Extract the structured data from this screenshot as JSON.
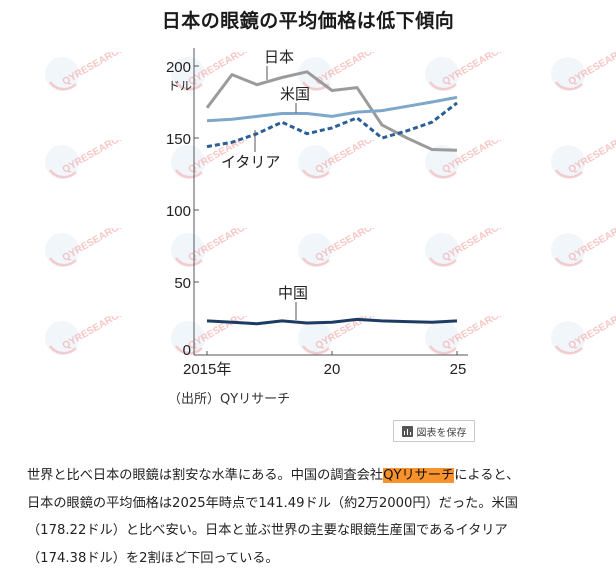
{
  "chart_data": {
    "type": "line",
    "title": "日本の眼鏡の平均価格は低下傾向",
    "xlabel": "",
    "ylabel": "ドル",
    "x": [
      2015,
      2016,
      2017,
      2018,
      2019,
      2020,
      2021,
      2022,
      2023,
      2024,
      2025
    ],
    "x_tick_labels": [
      "2015年",
      "20",
      "25"
    ],
    "x_ticks": [
      2015,
      2020,
      2025
    ],
    "y_ticks": [
      0,
      50,
      100,
      150,
      200
    ],
    "y_tick_labels": [
      "0",
      "50",
      "100",
      "150",
      "200"
    ],
    "ylim": [
      0,
      200
    ],
    "grid": false,
    "legend": "inline labels",
    "series": [
      {
        "name": "日本",
        "color": "#9b9b9b",
        "style": "solid",
        "values": [
          171,
          194,
          187,
          192,
          196,
          183,
          185,
          159,
          150,
          142,
          141.49
        ]
      },
      {
        "name": "米国",
        "color": "#7fa7c9",
        "style": "solid",
        "values": [
          162,
          163,
          165,
          167,
          167,
          165,
          168,
          169,
          172,
          175,
          178.22
        ]
      },
      {
        "name": "イタリア",
        "color": "#2a5f97",
        "style": "dashed",
        "values": [
          144,
          147,
          153,
          161,
          153,
          157,
          164,
          150,
          155,
          161,
          174.38
        ]
      },
      {
        "name": "中国",
        "color": "#1d3c63",
        "style": "solid",
        "values": [
          23,
          22,
          21,
          23,
          21.5,
          22,
          24,
          23,
          22.5,
          22,
          23
        ]
      }
    ],
    "annotations": [
      "日本",
      "米国",
      "イタリア",
      "中国"
    ]
  },
  "chart": {
    "title": "日本の眼鏡の平均価格は低下傾向",
    "unit_label": "ドル",
    "y_labels": [
      "200",
      "150",
      "100",
      "50",
      "0"
    ],
    "x_labels": [
      "2015年",
      "20",
      "25"
    ],
    "series_labels": {
      "japan": "日本",
      "us": "米国",
      "italy": "イタリア",
      "china": "中国"
    },
    "source": "（出所）QYリサーチ",
    "save_button": "図表を保存"
  },
  "watermark": "QYRESEARCH",
  "article": {
    "line1_pre": "世界と比べ日本の眼鏡は割安な水準にある。中国の調査会社",
    "line1_link": "QYリサーチ",
    "line1_post": "によると、",
    "line2": "日本の眼鏡の平均価格は2025年時点で141.49ドル（約2万2000円）だった。米国",
    "line3": "（178.22ドル）と比べ安い。日本と並ぶ世界の主要な眼鏡生産国であるイタリア",
    "line4": "（174.38ドル）を2割ほど下回っている。",
    "highlight_color": "#f8922d"
  }
}
